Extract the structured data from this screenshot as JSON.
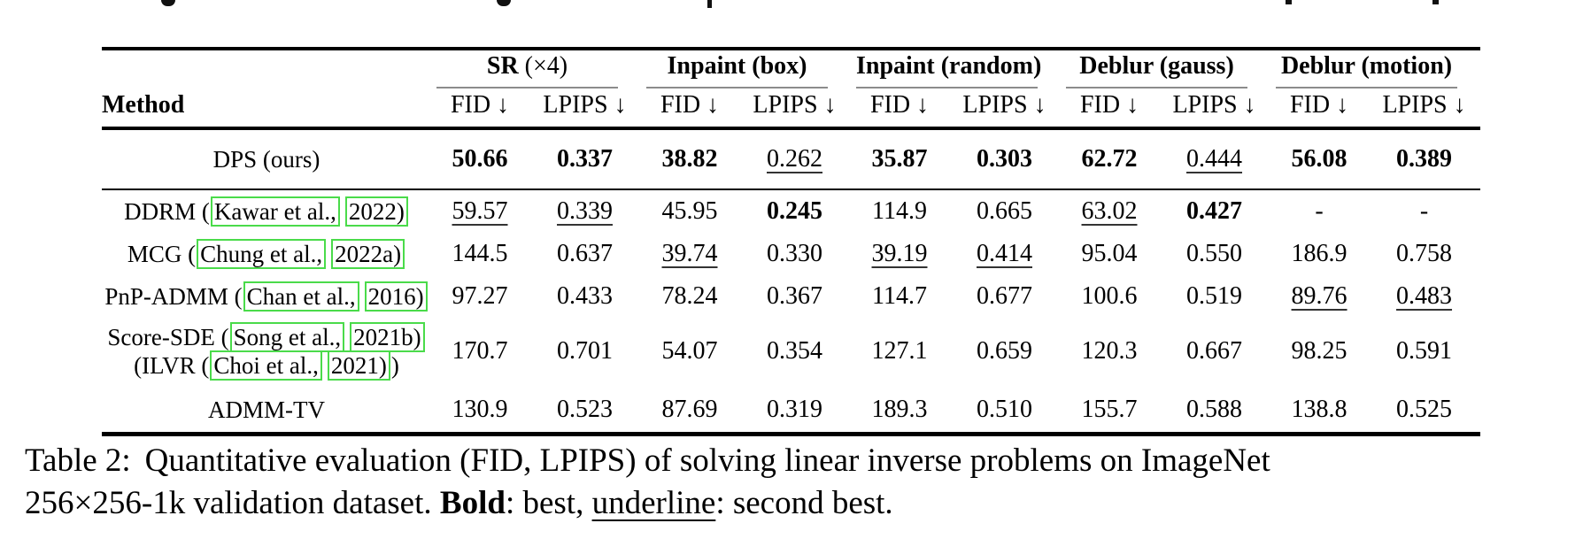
{
  "table": {
    "method_label": "Method",
    "fid_label": "FID ↓",
    "lpips_label": "LPIPS ↓",
    "groups": [
      {
        "bold": "SR",
        "normal": " (×4)"
      },
      {
        "bold": "Inpaint (box)",
        "normal": ""
      },
      {
        "bold": "Inpaint (random)",
        "normal": ""
      },
      {
        "bold": "Deblur (gauss)",
        "normal": ""
      },
      {
        "bold": "Deblur (motion)",
        "normal": ""
      }
    ],
    "rows": [
      {
        "method": {
          "pre": "DPS (ours)"
        },
        "cells": [
          "50.66",
          "0.337",
          "38.82",
          "0.262",
          "35.87",
          "0.303",
          "62.72",
          "0.444",
          "56.08",
          "0.389"
        ]
      },
      {
        "method": {
          "pre": "DDRM (",
          "authors": "Kawar et al.,",
          "year": "2022)"
        },
        "cells": [
          "59.57",
          "0.339",
          "45.95",
          "0.245",
          "114.9",
          "0.665",
          "63.02",
          "0.427",
          "-",
          "-"
        ]
      },
      {
        "method": {
          "pre": "MCG (",
          "authors": "Chung et al.,",
          "year": "2022a)"
        },
        "cells": [
          "144.5",
          "0.637",
          "39.74",
          "0.330",
          "39.19",
          "0.414",
          "95.04",
          "0.550",
          "186.9",
          "0.758"
        ]
      },
      {
        "method": {
          "pre": "PnP-ADMM (",
          "authors": "Chan et al.,",
          "year": "2016)"
        },
        "cells": [
          "97.27",
          "0.433",
          "78.24",
          "0.367",
          "114.7",
          "0.677",
          "100.6",
          "0.519",
          "89.76",
          "0.483"
        ]
      },
      {
        "method": {
          "line1": {
            "pre": "Score-SDE (",
            "authors": "Song et al.,",
            "year": "2021b)"
          },
          "line2": {
            "pre": "(ILVR (",
            "authors": "Choi et al.,",
            "year": "2021)",
            "post": ")"
          }
        },
        "cells": [
          "170.7",
          "0.701",
          "54.07",
          "0.354",
          "127.1",
          "0.659",
          "120.3",
          "0.667",
          "98.25",
          "0.591"
        ]
      },
      {
        "method": {
          "pre": "ADMM-TV"
        },
        "cells": [
          "130.9",
          "0.523",
          "87.69",
          "0.319",
          "189.3",
          "0.510",
          "155.7",
          "0.588",
          "138.8",
          "0.525"
        ]
      }
    ]
  },
  "caption": {
    "label": "Table 2:",
    "line1": "Quantitative evaluation (FID, LPIPS) of solving linear inverse problems on ImageNet",
    "line2_start": "256×256-1k validation dataset. ",
    "bold_word": "Bold",
    "mid": ": best, ",
    "underline_word": "underline",
    "end": ": second best."
  },
  "colors": {
    "citation_box": "#4adb4a",
    "cmidrule_gray": "#8c8c8c"
  }
}
